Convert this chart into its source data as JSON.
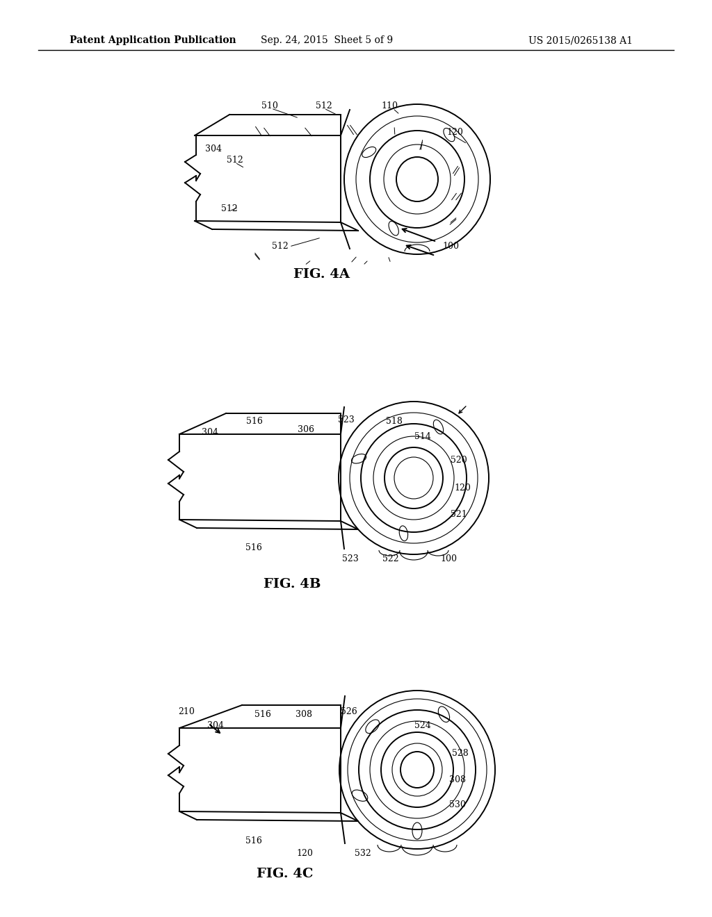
{
  "bg_color": "#ffffff",
  "header_left": "Patent Application Publication",
  "header_center": "Sep. 24, 2015  Sheet 5 of 9",
  "header_right": "US 2015/0265138 A1",
  "fig4a_label": "FIG. 4A",
  "fig4b_label": "FIG. 4B",
  "fig4c_label": "FIG. 4C",
  "line_color": "#000000",
  "lw_main": 1.4,
  "lw_thin": 0.8,
  "lw_leader": 0.7,
  "fs_ref": 9,
  "fs_fig": 14,
  "fs_header": 10
}
